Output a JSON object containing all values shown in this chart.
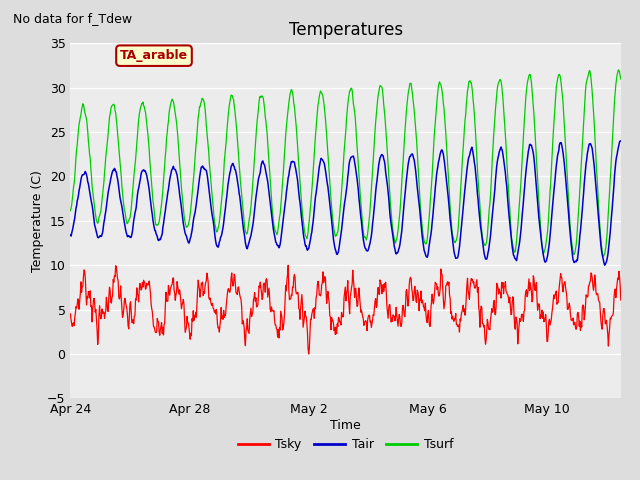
{
  "title": "Temperatures",
  "top_left_text": "No data for f_Tdew",
  "annotation_text": "TA_arable",
  "xlabel": "Time",
  "ylabel": "Temperature (C)",
  "ylim": [
    -5,
    35
  ],
  "yticks": [
    -5,
    0,
    5,
    10,
    15,
    20,
    25,
    30,
    35
  ],
  "xtick_labels": [
    "Apr 24",
    "Apr 28",
    "May 2",
    "May 6",
    "May 10"
  ],
  "xtick_pos": [
    0,
    4,
    8,
    12,
    16
  ],
  "n_days": 18.5,
  "bg_color": "#dddddd",
  "plot_bg_color": "#ececec",
  "line_colors": {
    "Tsky": "#ff0000",
    "Tair": "#0000cc",
    "Tsurf": "#00cc00"
  },
  "annotation_bg": "#ffffcc",
  "annotation_border": "#aa0000",
  "annotation_color": "#aa0000"
}
